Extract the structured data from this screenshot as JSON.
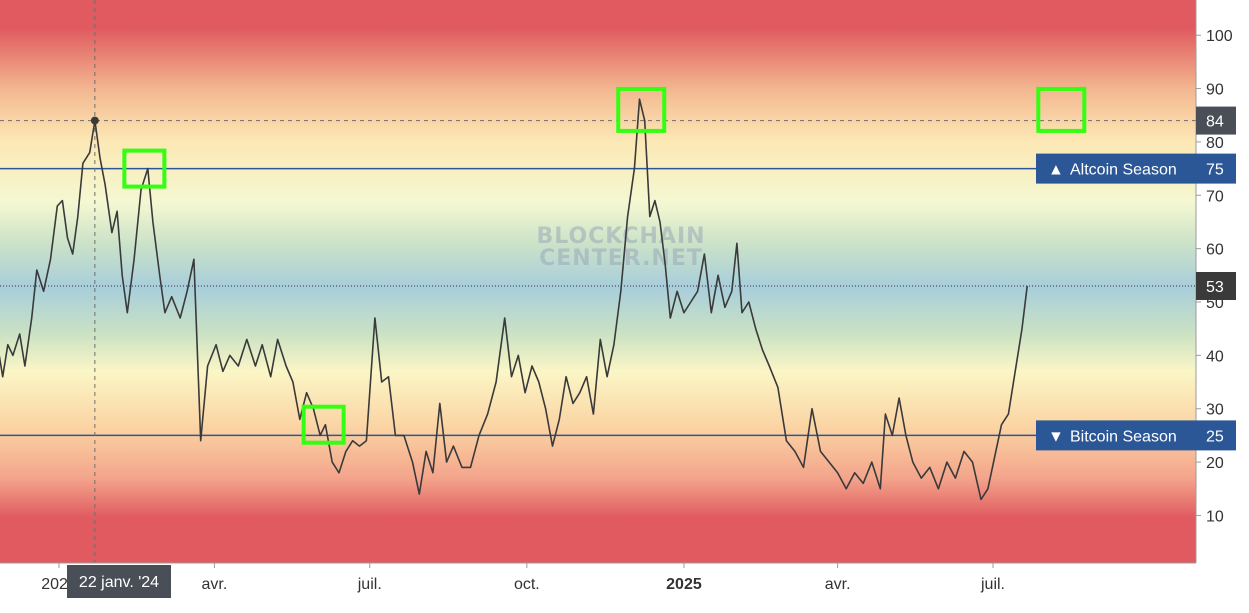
{
  "watermark": [
    "BLOCKCHAIN",
    "CENTER.NET"
  ],
  "crosshair_label": "22 janv. '24",
  "colors": {
    "line": "#3a3a3a",
    "season_line": "#2b5797",
    "highlight_box": "#33ff11",
    "band_red": "#e05a5f",
    "band_yellow": "#fff3bf",
    "band_blue": "#a8cedb"
  },
  "chart_data": {
    "type": "line",
    "ylim": [
      0,
      105
    ],
    "yticks": [
      "10",
      "20",
      "30",
      "40",
      "50",
      "60",
      "70",
      "80",
      "90",
      "100"
    ],
    "xticks": [
      {
        "label": "2024",
        "date": "2024-01-01"
      },
      {
        "label": "avr.",
        "date": "2024-04-01"
      },
      {
        "label": "juil.",
        "date": "2024-07-01"
      },
      {
        "label": "oct.",
        "date": "2024-10-01"
      },
      {
        "label": "2025",
        "date": "2025-01-01",
        "bold": true
      },
      {
        "label": "avr.",
        "date": "2025-04-01"
      },
      {
        "label": "juil.",
        "date": "2025-07-01"
      }
    ],
    "reference_lines": [
      {
        "label": "Altcoin Season",
        "value": 75,
        "display": "75",
        "arrow": "▲"
      },
      {
        "label": "Bitcoin Season",
        "value": 25,
        "display": "25",
        "arrow": "▼"
      }
    ],
    "crosshair": {
      "date": "2024-01-22",
      "value": 84,
      "display": "84"
    },
    "last_value": {
      "value": 53,
      "display": "53"
    },
    "highlights": [
      {
        "date": "2024-02-20",
        "value": 75
      },
      {
        "date": "2024-06-04",
        "value": 27
      },
      {
        "date": "2024-12-07",
        "value": 86
      },
      {
        "date": "2025-08-10",
        "value": 86
      }
    ],
    "series": [
      {
        "points": [
          [
            "2023-11-26",
            42
          ],
          [
            "2023-11-29",
            36
          ],
          [
            "2023-12-02",
            42
          ],
          [
            "2023-12-05",
            40
          ],
          [
            "2023-12-09",
            44
          ],
          [
            "2023-12-12",
            38
          ],
          [
            "2023-12-16",
            47
          ],
          [
            "2023-12-19",
            56
          ],
          [
            "2023-12-23",
            52
          ],
          [
            "2023-12-27",
            58
          ],
          [
            "2023-12-31",
            68
          ],
          [
            "2024-01-03",
            69
          ],
          [
            "2024-01-06",
            62
          ],
          [
            "2024-01-09",
            59
          ],
          [
            "2024-01-12",
            66
          ],
          [
            "2024-01-15",
            76
          ],
          [
            "2024-01-19",
            78
          ],
          [
            "2024-01-22",
            84
          ],
          [
            "2024-01-25",
            77
          ],
          [
            "2024-01-28",
            72
          ],
          [
            "2024-02-01",
            63
          ],
          [
            "2024-02-04",
            67
          ],
          [
            "2024-02-07",
            55
          ],
          [
            "2024-02-10",
            48
          ],
          [
            "2024-02-14",
            58
          ],
          [
            "2024-02-18",
            71
          ],
          [
            "2024-02-22",
            75
          ],
          [
            "2024-02-25",
            65
          ],
          [
            "2024-02-29",
            55
          ],
          [
            "2024-03-03",
            48
          ],
          [
            "2024-03-07",
            51
          ],
          [
            "2024-03-12",
            47
          ],
          [
            "2024-03-16",
            52
          ],
          [
            "2024-03-20",
            58
          ],
          [
            "2024-03-24",
            24
          ],
          [
            "2024-03-28",
            38
          ],
          [
            "2024-04-02",
            42
          ],
          [
            "2024-04-06",
            37
          ],
          [
            "2024-04-10",
            40
          ],
          [
            "2024-04-15",
            38
          ],
          [
            "2024-04-20",
            43
          ],
          [
            "2024-04-25",
            38
          ],
          [
            "2024-04-29",
            42
          ],
          [
            "2024-05-04",
            36
          ],
          [
            "2024-05-08",
            43
          ],
          [
            "2024-05-13",
            38
          ],
          [
            "2024-05-17",
            35
          ],
          [
            "2024-05-21",
            28
          ],
          [
            "2024-05-25",
            33
          ],
          [
            "2024-05-29",
            30
          ],
          [
            "2024-06-02",
            25
          ],
          [
            "2024-06-05",
            27
          ],
          [
            "2024-06-09",
            20
          ],
          [
            "2024-06-13",
            18
          ],
          [
            "2024-06-17",
            22
          ],
          [
            "2024-06-21",
            24
          ],
          [
            "2024-06-25",
            23
          ],
          [
            "2024-06-29",
            24
          ],
          [
            "2024-07-04",
            47
          ],
          [
            "2024-07-08",
            35
          ],
          [
            "2024-07-12",
            36
          ],
          [
            "2024-07-16",
            25
          ],
          [
            "2024-07-21",
            25
          ],
          [
            "2024-07-26",
            20
          ],
          [
            "2024-07-30",
            14
          ],
          [
            "2024-08-03",
            22
          ],
          [
            "2024-08-07",
            18
          ],
          [
            "2024-08-11",
            31
          ],
          [
            "2024-08-15",
            20
          ],
          [
            "2024-08-19",
            23
          ],
          [
            "2024-08-24",
            19
          ],
          [
            "2024-08-29",
            19
          ],
          [
            "2024-09-03",
            25
          ],
          [
            "2024-09-08",
            29
          ],
          [
            "2024-09-13",
            35
          ],
          [
            "2024-09-18",
            47
          ],
          [
            "2024-09-22",
            36
          ],
          [
            "2024-09-26",
            40
          ],
          [
            "2024-09-30",
            33
          ],
          [
            "2024-10-04",
            38
          ],
          [
            "2024-10-08",
            35
          ],
          [
            "2024-10-12",
            30
          ],
          [
            "2024-10-16",
            23
          ],
          [
            "2024-10-20",
            28
          ],
          [
            "2024-10-24",
            36
          ],
          [
            "2024-10-28",
            31
          ],
          [
            "2024-11-01",
            33
          ],
          [
            "2024-11-05",
            36
          ],
          [
            "2024-11-09",
            29
          ],
          [
            "2024-11-13",
            43
          ],
          [
            "2024-11-17",
            36
          ],
          [
            "2024-11-21",
            42
          ],
          [
            "2024-11-25",
            52
          ],
          [
            "2024-11-29",
            66
          ],
          [
            "2024-12-03",
            75
          ],
          [
            "2024-12-06",
            88
          ],
          [
            "2024-12-09",
            84
          ],
          [
            "2024-12-12",
            66
          ],
          [
            "2024-12-15",
            69
          ],
          [
            "2024-12-18",
            65
          ],
          [
            "2024-12-21",
            57
          ],
          [
            "2024-12-24",
            47
          ],
          [
            "2024-12-28",
            52
          ],
          [
            "2025-01-01",
            48
          ],
          [
            "2025-01-05",
            50
          ],
          [
            "2025-01-09",
            52
          ],
          [
            "2025-01-13",
            59
          ],
          [
            "2025-01-17",
            48
          ],
          [
            "2025-01-21",
            55
          ],
          [
            "2025-01-25",
            49
          ],
          [
            "2025-01-29",
            52
          ],
          [
            "2025-02-01",
            61
          ],
          [
            "2025-02-04",
            48
          ],
          [
            "2025-02-08",
            50
          ],
          [
            "2025-02-12",
            45
          ],
          [
            "2025-02-16",
            41
          ],
          [
            "2025-02-20",
            38
          ],
          [
            "2025-02-25",
            34
          ],
          [
            "2025-03-02",
            24
          ],
          [
            "2025-03-07",
            22
          ],
          [
            "2025-03-12",
            19
          ],
          [
            "2025-03-17",
            30
          ],
          [
            "2025-03-22",
            22
          ],
          [
            "2025-03-27",
            20
          ],
          [
            "2025-04-01",
            18
          ],
          [
            "2025-04-06",
            15
          ],
          [
            "2025-04-11",
            18
          ],
          [
            "2025-04-16",
            16
          ],
          [
            "2025-04-21",
            20
          ],
          [
            "2025-04-26",
            15
          ],
          [
            "2025-04-29",
            29
          ],
          [
            "2025-05-03",
            25
          ],
          [
            "2025-05-07",
            32
          ],
          [
            "2025-05-11",
            25
          ],
          [
            "2025-05-15",
            20
          ],
          [
            "2025-05-20",
            17
          ],
          [
            "2025-05-25",
            19
          ],
          [
            "2025-05-30",
            15
          ],
          [
            "2025-06-04",
            20
          ],
          [
            "2025-06-09",
            17
          ],
          [
            "2025-06-14",
            22
          ],
          [
            "2025-06-19",
            20
          ],
          [
            "2025-06-24",
            13
          ],
          [
            "2025-06-28",
            15
          ],
          [
            "2025-07-02",
            21
          ],
          [
            "2025-07-06",
            27
          ],
          [
            "2025-07-10",
            29
          ],
          [
            "2025-07-14",
            37
          ],
          [
            "2025-07-18",
            45
          ],
          [
            "2025-07-21",
            53
          ]
        ]
      }
    ]
  }
}
